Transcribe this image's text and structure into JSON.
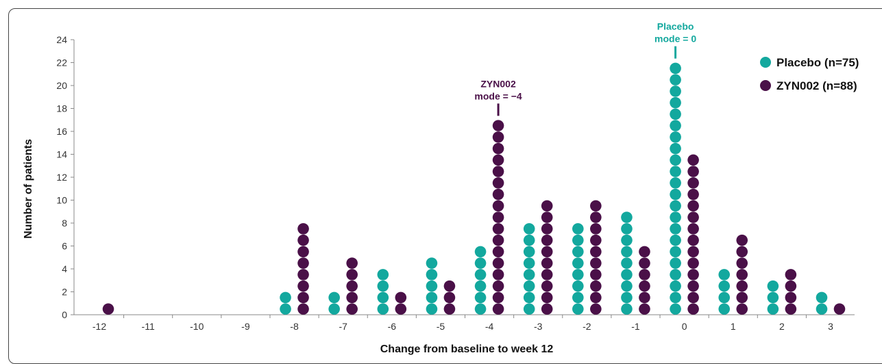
{
  "chart_data": {
    "type": "scatter",
    "xlabel": "Change from baseline to week 12",
    "ylabel": "Number of patients",
    "x_ticks": [
      -12,
      -11,
      -10,
      -9,
      -8,
      -7,
      -6,
      -5,
      -4,
      -3,
      -2,
      -1,
      0,
      1,
      2,
      3
    ],
    "ylim": [
      0,
      24
    ],
    "y_ticks": [
      0,
      2,
      4,
      6,
      8,
      10,
      12,
      14,
      16,
      18,
      20,
      22,
      24
    ],
    "legend_position": "top-right",
    "series": [
      {
        "name": "Placebo (n=75)",
        "color": "#13A89E",
        "x": [
          -12,
          -11,
          -10,
          -9,
          -8,
          -7,
          -6,
          -5,
          -4,
          -3,
          -2,
          -1,
          0,
          1,
          2,
          3
        ],
        "values": [
          0,
          0,
          0,
          0,
          2,
          2,
          4,
          5,
          6,
          8,
          8,
          9,
          22,
          4,
          3,
          2
        ]
      },
      {
        "name": "ZYN002 (n=88)",
        "color": "#4A1048",
        "x": [
          -12,
          -11,
          -10,
          -9,
          -8,
          -7,
          -6,
          -5,
          -4,
          -3,
          -2,
          -1,
          0,
          1,
          2,
          3
        ],
        "values": [
          1,
          0,
          0,
          0,
          8,
          5,
          2,
          3,
          17,
          10,
          10,
          6,
          14,
          7,
          4,
          1
        ]
      }
    ],
    "annotations": [
      {
        "line1": "Placebo",
        "line2": "mode = 0",
        "x": 0,
        "color": "#13A89E"
      },
      {
        "line1": "ZYN002",
        "line2": "mode = −4",
        "x": -4,
        "color": "#4A1048"
      }
    ]
  }
}
